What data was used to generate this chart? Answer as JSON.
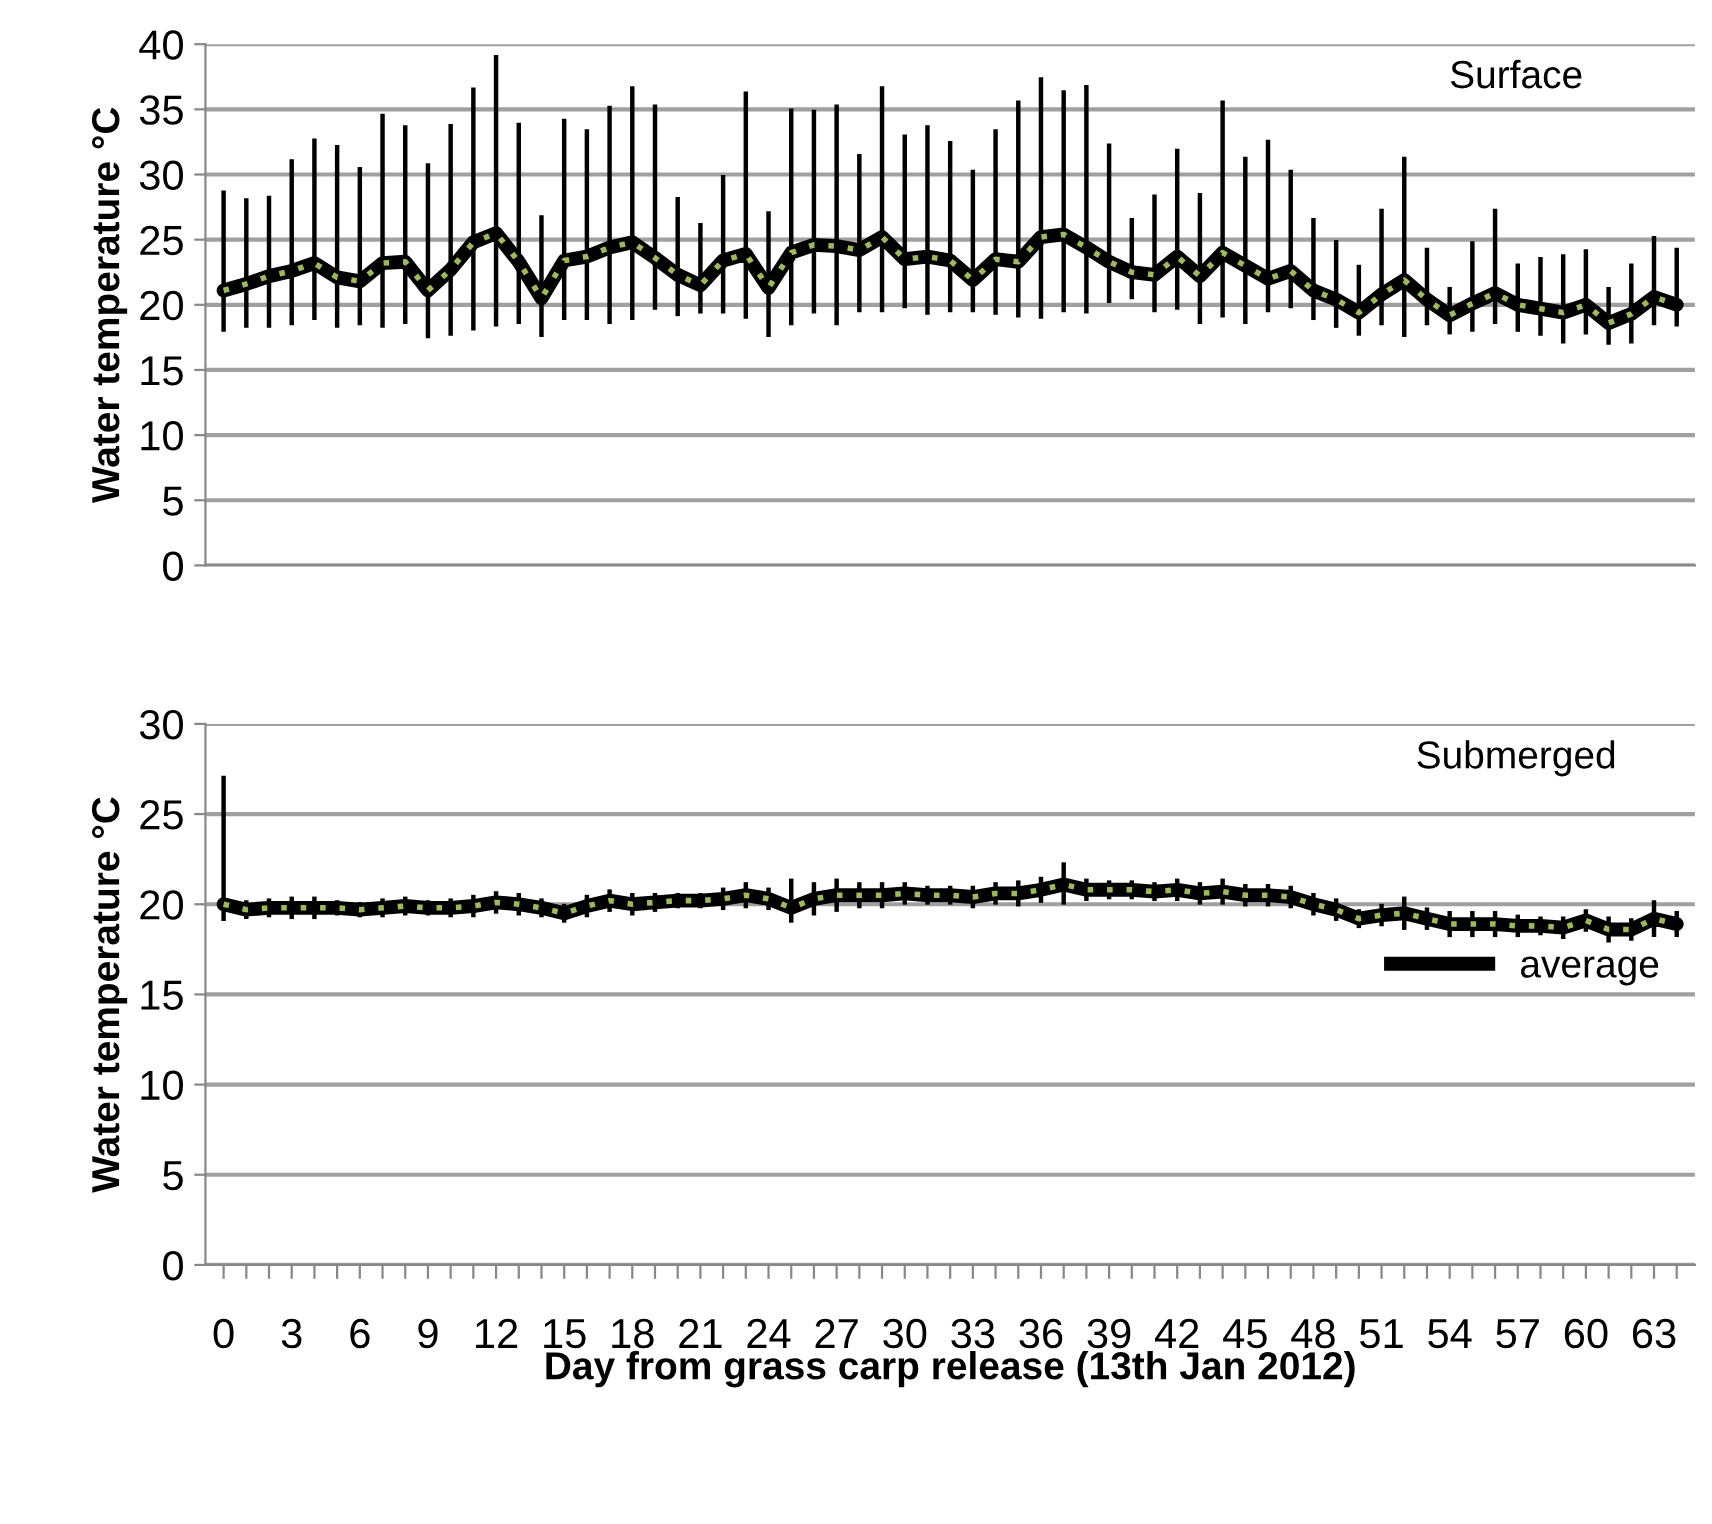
{
  "chart_data": [
    {
      "type": "line",
      "title": "Surface",
      "ylabel": "Water temperature °C",
      "categories": [
        "0",
        null,
        null,
        "3",
        null,
        null,
        "6",
        null,
        null,
        "9",
        null,
        null,
        "12",
        null,
        null,
        "15",
        null,
        null,
        "18",
        null,
        null,
        "21",
        null,
        null,
        "24",
        null,
        null,
        "27",
        null,
        null,
        "30",
        null,
        null,
        "33",
        null,
        null,
        "36",
        null,
        null,
        "39",
        null,
        null,
        "42",
        null,
        null,
        "45",
        null,
        null,
        "48",
        null,
        null,
        "51",
        null,
        null,
        "54",
        null,
        null,
        "57",
        null,
        null,
        "60",
        null,
        null,
        "63",
        null
      ],
      "series": [
        {
          "color": "#000000",
          "values": [
            21.1,
            21.6,
            22.2,
            22.6,
            23.2,
            22.1,
            21.8,
            23.2,
            23.3,
            21.1,
            22.7,
            24.8,
            25.5,
            23.3,
            20.5,
            23.4,
            23.7,
            24.4,
            24.8,
            23.6,
            22.3,
            21.5,
            23.4,
            23.9,
            21.3,
            24.0,
            24.6,
            24.5,
            24.2,
            25.2,
            23.5,
            23.7,
            23.4,
            21.9,
            23.5,
            23.3,
            25.2,
            25.4,
            24.4,
            23.3,
            22.5,
            22.3,
            23.7,
            22.2,
            24.0,
            23.0,
            22.0,
            22.6,
            21.1,
            20.4,
            19.4,
            20.8,
            21.9,
            20.4,
            19.2,
            20.1,
            20.9,
            20.0,
            19.7,
            19.4,
            20.0,
            18.6,
            19.3,
            20.6,
            20.0
          ],
          "errors": [
            [
              18.1,
              28.6
            ],
            [
              18.4,
              28.0
            ],
            [
              18.4,
              28.2
            ],
            [
              18.6,
              31.0
            ],
            [
              19.0,
              32.6
            ],
            [
              18.4,
              32.1
            ],
            [
              18.6,
              30.4
            ],
            [
              18.4,
              34.5
            ],
            [
              18.7,
              33.6
            ],
            [
              17.6,
              30.7
            ],
            [
              17.8,
              33.7
            ],
            [
              18.2,
              36.5
            ],
            [
              18.5,
              39.0
            ],
            [
              18.7,
              33.8
            ],
            [
              17.7,
              26.7
            ],
            [
              19.0,
              34.1
            ],
            [
              19.0,
              33.3
            ],
            [
              18.7,
              35.1
            ],
            [
              19.0,
              36.6
            ],
            [
              19.8,
              35.2
            ],
            [
              19.3,
              28.1
            ],
            [
              19.5,
              26.1
            ],
            [
              19.5,
              29.8
            ],
            [
              19.1,
              36.2
            ],
            [
              17.7,
              27.0
            ],
            [
              18.6,
              34.9
            ],
            [
              19.5,
              34.8
            ],
            [
              18.6,
              35.2
            ],
            [
              19.6,
              31.4
            ],
            [
              19.6,
              36.6
            ],
            [
              19.9,
              32.9
            ],
            [
              19.4,
              33.6
            ],
            [
              19.6,
              32.4
            ],
            [
              19.6,
              30.2
            ],
            [
              19.4,
              33.3
            ],
            [
              19.2,
              35.5
            ],
            [
              19.1,
              37.3
            ],
            [
              19.6,
              36.3
            ],
            [
              19.5,
              36.7
            ],
            [
              20.3,
              32.2
            ],
            [
              20.6,
              26.5
            ],
            [
              19.6,
              28.3
            ],
            [
              19.8,
              31.8
            ],
            [
              18.7,
              28.4
            ],
            [
              19.2,
              35.5
            ],
            [
              18.7,
              31.2
            ],
            [
              19.6,
              32.5
            ],
            [
              19.9,
              30.2
            ],
            [
              19.0,
              26.5
            ],
            [
              18.4,
              24.8
            ],
            [
              17.8,
              22.9
            ],
            [
              18.6,
              27.2
            ],
            [
              17.7,
              31.2
            ],
            [
              18.6,
              24.2
            ],
            [
              17.9,
              21.2
            ],
            [
              18.1,
              24.7
            ],
            [
              18.7,
              27.2
            ],
            [
              18.1,
              23.0
            ],
            [
              17.8,
              23.5
            ],
            [
              17.2,
              23.7
            ],
            [
              17.9,
              24.1
            ],
            [
              17.1,
              21.2
            ],
            [
              17.2,
              23.0
            ],
            [
              18.6,
              25.1
            ],
            [
              18.5,
              24.2
            ]
          ]
        }
      ],
      "ylim": [
        0,
        40
      ],
      "yticks": [
        0,
        5,
        10,
        15,
        20,
        25,
        30,
        35,
        40
      ],
      "grid": "y",
      "tick_labels": "y",
      "line_style": "solid"
    },
    {
      "type": "line",
      "title": "Submerged",
      "ylabel": "Water temperature °C",
      "xlabel": "Day from grass carp release (13th Jan 2012)",
      "categories": [
        "0",
        null,
        null,
        "3",
        null,
        null,
        "6",
        null,
        null,
        "9",
        null,
        null,
        "12",
        null,
        null,
        "15",
        null,
        null,
        "18",
        null,
        null,
        "21",
        null,
        null,
        "24",
        null,
        null,
        "27",
        null,
        null,
        "30",
        null,
        null,
        "33",
        null,
        null,
        "36",
        null,
        null,
        "39",
        null,
        null,
        "42",
        null,
        null,
        "45",
        null,
        null,
        "48",
        null,
        null,
        "51",
        null,
        null,
        "54",
        null,
        null,
        "57",
        null,
        null,
        "60",
        null,
        null,
        "63",
        null
      ],
      "series": [
        {
          "name": "average",
          "color": "#000000",
          "values": [
            20.0,
            19.7,
            19.8,
            19.8,
            19.8,
            19.8,
            19.7,
            19.8,
            19.9,
            19.8,
            19.8,
            19.9,
            20.1,
            20.0,
            19.8,
            19.5,
            19.9,
            20.2,
            20.0,
            20.1,
            20.2,
            20.2,
            20.3,
            20.5,
            20.3,
            19.8,
            20.3,
            20.5,
            20.5,
            20.5,
            20.6,
            20.5,
            20.5,
            20.4,
            20.6,
            20.6,
            20.8,
            21.1,
            20.8,
            20.8,
            20.8,
            20.7,
            20.8,
            20.6,
            20.7,
            20.5,
            20.5,
            20.4,
            20.0,
            19.7,
            19.2,
            19.4,
            19.5,
            19.2,
            18.9,
            18.9,
            18.9,
            18.8,
            18.8,
            18.7,
            19.1,
            18.6,
            18.6,
            19.2,
            18.9
          ],
          "errors": [
            [
              19.2,
              27.0
            ],
            0.4,
            0.4,
            0.5,
            0.5,
            0.3,
            0.3,
            0.4,
            0.4,
            0.3,
            0.4,
            0.5,
            0.5,
            0.5,
            0.4,
            0.4,
            0.5,
            0.5,
            0.5,
            0.4,
            0.3,
            0.3,
            0.5,
            0.6,
            0.5,
            [
              19.1,
              21.3
            ],
            0.8,
            0.8,
            0.6,
            0.6,
            0.5,
            0.4,
            0.4,
            0.5,
            0.5,
            0.6,
            0.6,
            [
              20.1,
              22.2
            ],
            0.5,
            0.4,
            0.4,
            0.4,
            0.5,
            0.5,
            0.6,
            0.5,
            0.5,
            0.5,
            0.5,
            0.5,
            0.4,
            0.5,
            0.8,
            0.5,
            0.6,
            0.6,
            0.6,
            0.5,
            0.4,
            0.5,
            0.5,
            0.6,
            0.5,
            0.9,
            0.6
          ]
        }
      ],
      "ylim": [
        0,
        30
      ],
      "yticks": [
        0,
        5,
        10,
        15,
        20,
        25,
        30
      ],
      "grid": "y",
      "legend": "right",
      "line_style": "solid"
    }
  ]
}
